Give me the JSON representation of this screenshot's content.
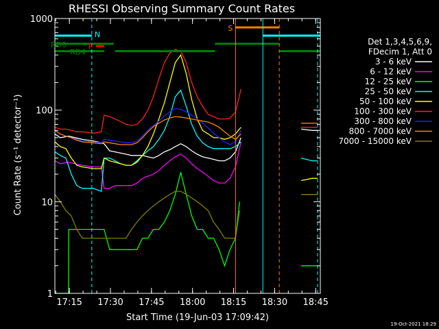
{
  "chart_data": {
    "type": "line",
    "title": "RHESSI Observing Summary Count Rates",
    "xlabel": "Start Time (19-Jun-03 17:09:42)",
    "ylabel": "Count Rate (s⁻¹ detector⁻¹)",
    "x_unit": "minutes after 17:09:42",
    "xlim": [
      0,
      97
    ],
    "ylim": [
      1,
      1000
    ],
    "yscale": "log",
    "x_ticks": [
      {
        "label": "17:15",
        "x": 5.3
      },
      {
        "label": "17:30",
        "x": 20.3
      },
      {
        "label": "17:45",
        "x": 35.3
      },
      {
        "label": "18:00",
        "x": 50.3
      },
      {
        "label": "18:15",
        "x": 65.3
      },
      {
        "label": "18:30",
        "x": 80.3
      },
      {
        "label": "18:45",
        "x": 95.3
      }
    ],
    "y_ticks": [
      {
        "label": "1",
        "y": 1
      },
      {
        "label": "10",
        "y": 10
      },
      {
        "label": "100",
        "y": 100
      },
      {
        "label": "1000",
        "y": 1000
      }
    ],
    "legend": {
      "placement": "right",
      "header": [
        "Det 1,3,4,5,6,9,",
        "FDecim 1, Att 0"
      ]
    },
    "series": [
      {
        "name": "3 - 6 keV",
        "color": "#ffffff",
        "x": [
          0,
          2,
          5,
          10,
          14,
          17,
          18,
          20,
          22,
          24,
          26,
          28,
          30,
          32,
          34,
          36,
          38,
          40,
          42,
          44,
          46,
          48,
          50,
          52,
          54,
          56,
          58,
          60,
          62,
          64,
          66,
          68,
          88,
          90,
          94,
          96
        ],
        "y": [
          55,
          50,
          52,
          48,
          46,
          44,
          43,
          36,
          35,
          34,
          33,
          32,
          32,
          32,
          31,
          30,
          32,
          35,
          37,
          40,
          43,
          40,
          36,
          33,
          31,
          30,
          29,
          28,
          28,
          30,
          35,
          50,
          null,
          62,
          60,
          60
        ]
      },
      {
        "name": "6 - 12 keV",
        "color": "#ff00ff",
        "x": [
          0,
          2,
          5,
          10,
          14,
          17,
          18,
          20,
          22,
          24,
          26,
          28,
          30,
          32,
          34,
          36,
          38,
          40,
          42,
          44,
          46,
          48,
          50,
          52,
          54,
          56,
          58,
          60,
          62,
          64,
          66,
          68,
          88,
          90,
          94,
          96
        ],
        "y": [
          28,
          26,
          27,
          25,
          24,
          24,
          14,
          14,
          15,
          15,
          15,
          15,
          16,
          18,
          19,
          20,
          22,
          25,
          28,
          31,
          33,
          30,
          26,
          23,
          21,
          19,
          17,
          16,
          16,
          18,
          24,
          45,
          null,
          12,
          12,
          12
        ]
      },
      {
        "name": "12 - 25 keV",
        "color": "#00ff00",
        "x": [
          0,
          5,
          5.1,
          10,
          14,
          18,
          20,
          22,
          24,
          26,
          28,
          30,
          32,
          34,
          36,
          38,
          40,
          42,
          44,
          46,
          48,
          50,
          52,
          54,
          56,
          58,
          60,
          62,
          64,
          66,
          67.5,
          68,
          88,
          90,
          94,
          96
        ],
        "y": [
          1,
          1,
          5,
          5,
          5,
          5,
          3,
          3,
          3,
          3,
          3,
          3,
          4,
          4,
          5,
          5,
          6,
          8,
          12,
          21,
          12,
          7,
          5,
          5,
          4,
          4,
          3,
          2,
          3,
          4,
          10,
          null,
          null,
          2,
          2,
          2
        ]
      },
      {
        "name": "25 - 50 keV",
        "color": "#00ffff",
        "x": [
          0,
          2,
          4,
          6,
          8,
          10,
          14,
          17,
          18,
          20,
          22,
          24,
          26,
          28,
          30,
          32,
          34,
          36,
          38,
          40,
          42,
          44,
          46,
          48,
          50,
          52,
          54,
          56,
          58,
          60,
          62,
          64,
          66,
          68,
          88,
          90,
          94,
          96
        ],
        "y": [
          35,
          32,
          30,
          20,
          15,
          14,
          14,
          13,
          30,
          30,
          28,
          26,
          25,
          25,
          28,
          32,
          36,
          40,
          48,
          60,
          85,
          140,
          165,
          110,
          70,
          52,
          44,
          40,
          38,
          38,
          38,
          38,
          40,
          45,
          null,
          30,
          28,
          28
        ]
      },
      {
        "name": "50 - 100 keV",
        "color": "#ffff00",
        "x": [
          0,
          2,
          4,
          6,
          8,
          10,
          14,
          17,
          18,
          20,
          22,
          24,
          26,
          28,
          30,
          32,
          34,
          36,
          38,
          40,
          42,
          44,
          46,
          48,
          50,
          52,
          54,
          56,
          58,
          60,
          62,
          64,
          66,
          68,
          88,
          90,
          94,
          96
        ],
        "y": [
          45,
          40,
          38,
          30,
          25,
          24,
          23,
          23,
          30,
          28,
          27,
          26,
          25,
          25,
          27,
          32,
          40,
          55,
          80,
          120,
          200,
          330,
          400,
          250,
          130,
          80,
          60,
          55,
          50,
          50,
          48,
          50,
          55,
          65,
          null,
          17,
          18,
          18
        ]
      },
      {
        "name": "100 - 300 keV",
        "color": "#ff2020",
        "x": [
          0,
          2,
          4,
          6,
          8,
          10,
          14,
          17,
          18,
          20,
          22,
          24,
          26,
          28,
          30,
          32,
          34,
          36,
          38,
          40,
          42,
          44,
          46,
          48,
          50,
          52,
          54,
          56,
          58,
          60,
          62,
          64,
          66,
          68,
          88,
          90,
          94,
          96
        ],
        "y": [
          65,
          62,
          62,
          60,
          58,
          58,
          56,
          58,
          88,
          85,
          80,
          75,
          70,
          68,
          70,
          80,
          100,
          140,
          220,
          330,
          420,
          460,
          440,
          330,
          200,
          140,
          110,
          90,
          85,
          80,
          80,
          82,
          95,
          170,
          null,
          65,
          65,
          65
        ]
      },
      {
        "name": "300 - 800 keV",
        "color": "#2020ff",
        "x": [
          0,
          2,
          4,
          6,
          8,
          10,
          14,
          17,
          18,
          20,
          22,
          24,
          26,
          28,
          30,
          32,
          34,
          36,
          38,
          40,
          42,
          44,
          46,
          48,
          50,
          52,
          54,
          56,
          58,
          60,
          62,
          64,
          66,
          68
        ],
        "y": [
          60,
          55,
          52,
          50,
          48,
          46,
          45,
          44,
          48,
          47,
          46,
          45,
          44,
          44,
          46,
          52,
          60,
          68,
          76,
          86,
          96,
          104,
          102,
          96,
          88,
          80,
          72,
          64,
          56,
          50,
          45,
          42,
          45,
          60
        ]
      },
      {
        "name": "800 - 7000 keV",
        "color": "#ff8000",
        "x": [
          0,
          2,
          4,
          6,
          8,
          10,
          14,
          17,
          18,
          20,
          22,
          24,
          26,
          28,
          30,
          32,
          34,
          36,
          38,
          40,
          42,
          44,
          46,
          48,
          50,
          52,
          54,
          56,
          58,
          60,
          62,
          64,
          66,
          68,
          88,
          90,
          94,
          96
        ],
        "y": [
          60,
          55,
          52,
          50,
          47,
          45,
          44,
          43,
          45,
          44,
          43,
          42,
          42,
          42,
          44,
          50,
          58,
          66,
          72,
          78,
          82,
          85,
          84,
          82,
          80,
          78,
          76,
          74,
          70,
          65,
          58,
          52,
          48,
          55,
          null,
          72,
          72,
          72
        ]
      },
      {
        "name": "7000 - 15000 keV",
        "color": "#808000",
        "x": [
          0,
          2,
          4,
          6,
          8,
          10,
          14,
          17,
          18,
          20,
          22,
          24,
          26,
          28,
          30,
          32,
          34,
          36,
          38,
          40,
          42,
          44,
          46,
          48,
          50,
          52,
          54,
          56,
          58,
          60,
          62,
          64,
          66,
          67.5,
          88,
          90,
          94,
          96
        ],
        "y": [
          12,
          10,
          8,
          7,
          5,
          4,
          4,
          4,
          4,
          4,
          4,
          4,
          4,
          5,
          6,
          7,
          8,
          9,
          10,
          11,
          12,
          13,
          13,
          12,
          11,
          10,
          9,
          8,
          6,
          5,
          4,
          4,
          4,
          8,
          null,
          12,
          12,
          12
        ]
      }
    ],
    "annotations": [
      {
        "text": "N",
        "color": "#00ffff"
      },
      {
        "text": "F",
        "color": "#ff0000"
      },
      {
        "text": "S",
        "color": "#ff8000"
      },
      {
        "text": "RD0",
        "color": "#008000"
      },
      {
        "text": "RD4",
        "color": "#008000"
      }
    ],
    "status_bars": [
      {
        "name": "N",
        "color": "#00ffff",
        "y": 650,
        "segments": [
          [
            0,
            13.5
          ],
          [
            76,
            97
          ]
        ]
      },
      {
        "name": "F",
        "color": "#ff0000",
        "y": 500,
        "segments": [
          [
            15,
            18
          ]
        ]
      },
      {
        "name": "S",
        "color": "#ff8000",
        "y": 800,
        "segments": [
          [
            66,
            82
          ]
        ]
      },
      {
        "name": "RD0",
        "color": "#008000",
        "y": 530,
        "segments": [
          [
            0,
            21.5
          ]
        ]
      },
      {
        "name": "RD0-hi",
        "color": "#008000",
        "y": 530,
        "segments": [
          [
            58.5,
            82
          ]
        ]
      },
      {
        "name": "RD4",
        "color": "#008000",
        "y": 440,
        "segments": [
          [
            0,
            18
          ],
          [
            22,
            58.5
          ],
          [
            82,
            97
          ]
        ]
      }
    ],
    "vertical_lines": [
      {
        "x": 13.5,
        "color": "#00ffff",
        "dashed": true
      },
      {
        "x": 66,
        "color": "#ff8000",
        "dashed": false
      },
      {
        "x": 76,
        "color": "#00ffff",
        "dashed": false
      },
      {
        "x": 82,
        "color": "#ff8000",
        "dashed": true
      },
      {
        "x": 96,
        "color": "#00ffff",
        "dashed": true
      }
    ],
    "footer": "19-Oct-2021 18:29",
    "grid": false
  }
}
